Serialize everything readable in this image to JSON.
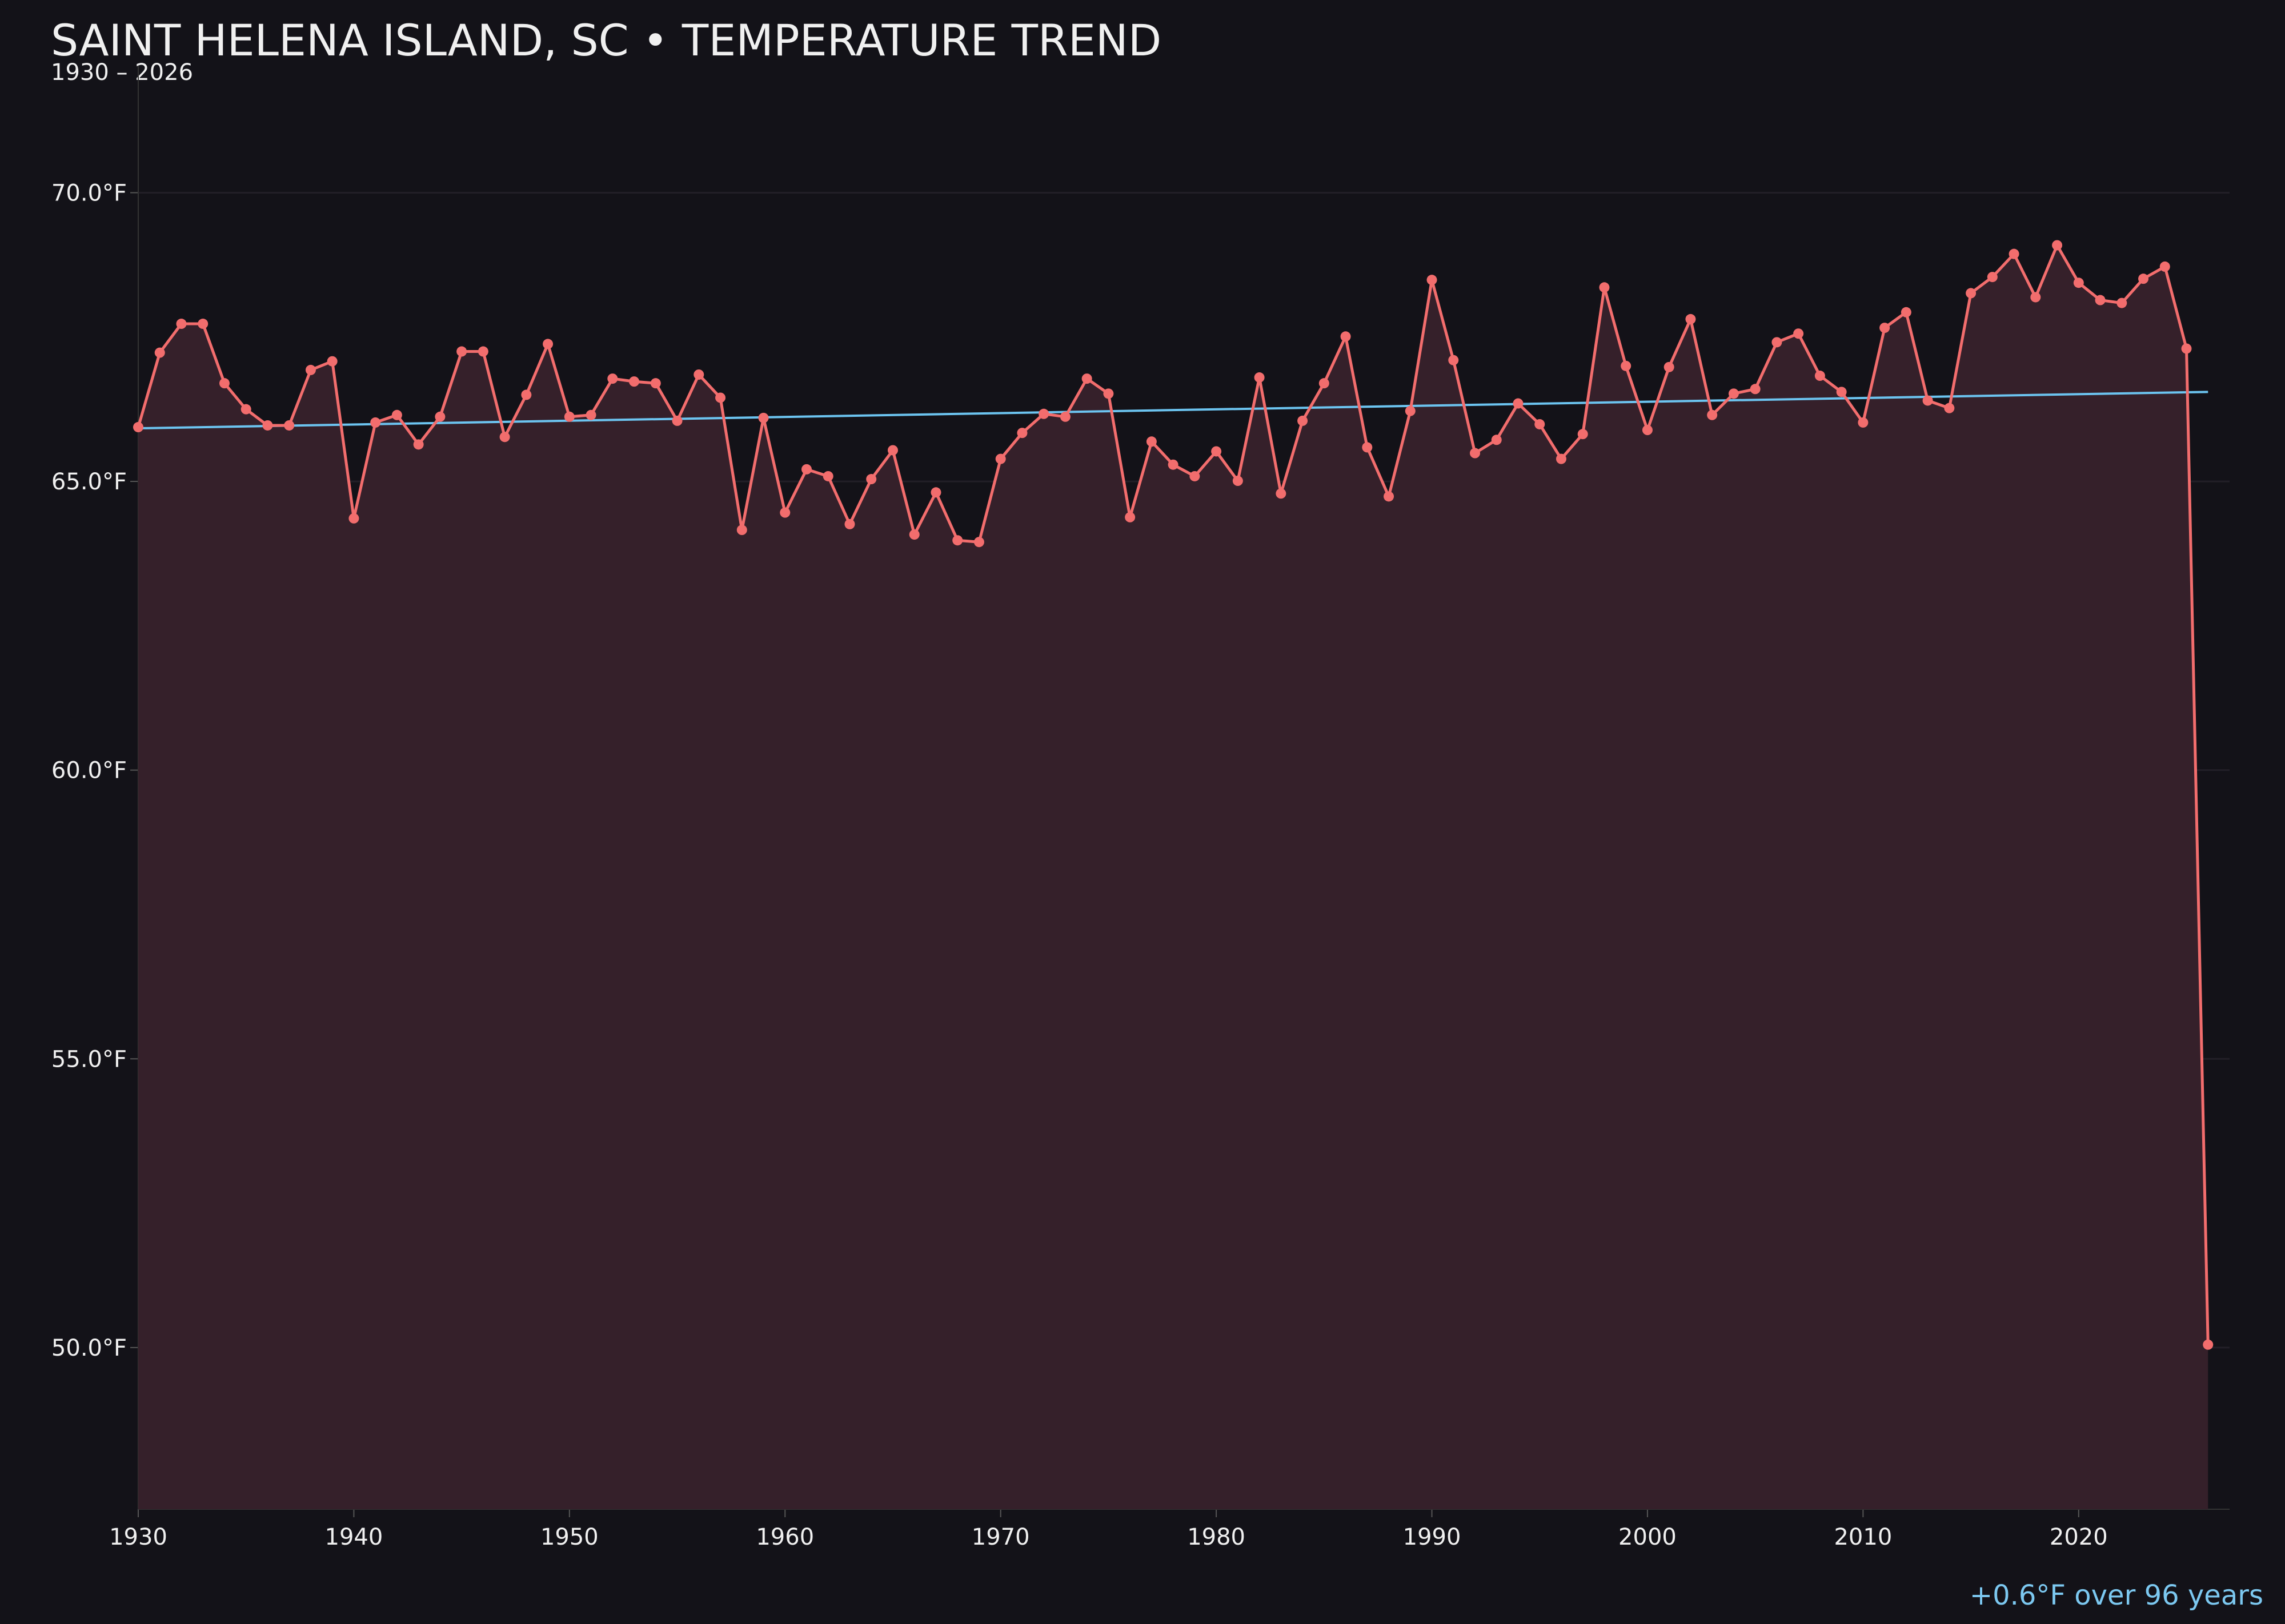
{
  "chart_data": {
    "type": "line",
    "title": "SAINT HELENA ISLAND, SC • TEMPERATURE TREND",
    "subtitle": "1930 – 2026",
    "annotation": "+0.6°F over 96 years",
    "x": [
      1930,
      1931,
      1932,
      1933,
      1934,
      1935,
      1936,
      1937,
      1938,
      1939,
      1940,
      1941,
      1942,
      1943,
      1944,
      1945,
      1946,
      1947,
      1948,
      1949,
      1950,
      1951,
      1952,
      1953,
      1954,
      1955,
      1956,
      1957,
      1958,
      1959,
      1960,
      1961,
      1962,
      1963,
      1964,
      1965,
      1966,
      1967,
      1968,
      1969,
      1970,
      1971,
      1972,
      1973,
      1974,
      1975,
      1976,
      1977,
      1978,
      1979,
      1980,
      1981,
      1982,
      1983,
      1984,
      1985,
      1986,
      1987,
      1988,
      1989,
      1990,
      1991,
      1992,
      1993,
      1994,
      1995,
      1996,
      1997,
      1998,
      1999,
      2000,
      2001,
      2002,
      2003,
      2004,
      2005,
      2006,
      2007,
      2008,
      2009,
      2010,
      2011,
      2012,
      2013,
      2014,
      2015,
      2016,
      2017,
      2018,
      2019,
      2020,
      2021,
      2022,
      2023,
      2024,
      2025,
      2026
    ],
    "values": [
      65.94,
      67.23,
      67.73,
      67.73,
      66.7,
      66.25,
      65.97,
      65.97,
      66.93,
      67.08,
      64.36,
      66.02,
      66.15,
      65.64,
      66.12,
      67.25,
      67.25,
      65.77,
      66.5,
      67.38,
      66.12,
      66.15,
      66.78,
      66.73,
      66.7,
      66.05,
      66.85,
      66.45,
      64.16,
      66.1,
      64.46,
      65.21,
      65.09,
      64.26,
      65.04,
      65.54,
      64.08,
      64.81,
      63.98,
      63.95,
      65.39,
      65.84,
      66.17,
      66.12,
      66.78,
      66.52,
      64.38,
      65.69,
      65.29,
      65.09,
      65.52,
      65.01,
      66.8,
      64.79,
      66.05,
      66.7,
      67.51,
      65.59,
      64.74,
      66.22,
      68.49,
      67.1,
      65.49,
      65.72,
      66.35,
      65.99,
      65.39,
      65.82,
      68.36,
      67.0,
      65.89,
      66.98,
      67.81,
      66.15,
      66.52,
      66.6,
      67.41,
      67.56,
      66.83,
      66.55,
      66.02,
      67.66,
      67.93,
      66.4,
      66.27,
      68.26,
      68.54,
      68.94,
      68.19,
      69.09,
      68.44,
      68.14,
      68.09,
      68.51,
      68.72,
      67.3,
      50.05
    ],
    "color": "#f26d6d",
    "fill_color": "#35202a",
    "trend": {
      "x": [
        1930,
        2026
      ],
      "values": [
        65.92,
        66.55
      ],
      "color": "#6cc4f0"
    },
    "xlim": [
      1930,
      2027
    ],
    "ylim": [
      47.2,
      72.2
    ],
    "xticks": [
      1930,
      1940,
      1950,
      1960,
      1970,
      1980,
      1990,
      2000,
      2010,
      2020
    ],
    "yticks": [
      {
        "value": 50,
        "label": "50.0°F"
      },
      {
        "value": 55,
        "label": "55.0°F"
      },
      {
        "value": 60,
        "label": "60.0°F"
      },
      {
        "value": 65,
        "label": "65.0°F"
      },
      {
        "value": 70,
        "label": "70.0°F"
      }
    ],
    "grid": true
  }
}
